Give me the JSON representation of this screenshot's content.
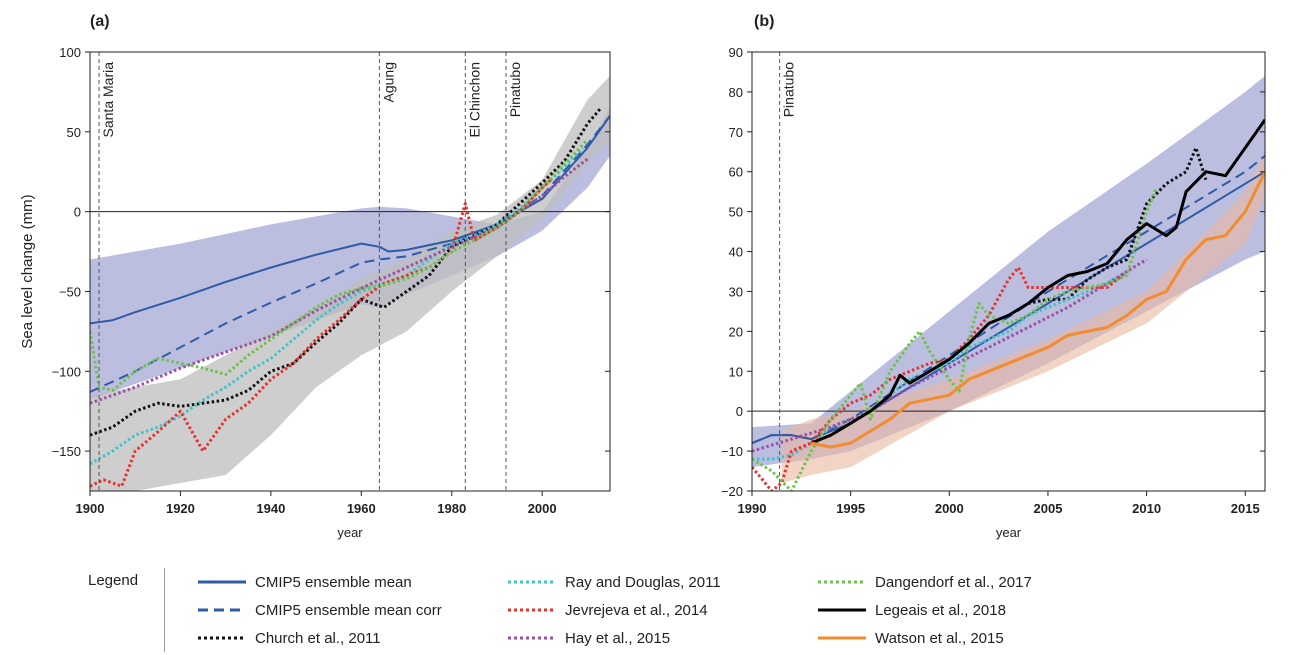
{
  "colors": {
    "cmip5": "#2f5aa8",
    "cmip5_band": "#8f92cc",
    "church": "#111111",
    "church_band": "#bdbdbd",
    "ray": "#40c4cc",
    "jevrejeva": "#e8302c",
    "hay": "#9b4fa6",
    "dangendorf": "#6cc24a",
    "legeais": "#000000",
    "watson": "#f28c30",
    "watson_band": "#e9b79f"
  },
  "legend": {
    "title": "Legend",
    "items": [
      {
        "label": "CMIP5 ensemble mean",
        "style": "solid",
        "color": "#2f5aa8"
      },
      {
        "label": "CMIP5 ensemble mean corr",
        "style": "dashed",
        "color": "#2f5aa8"
      },
      {
        "label": "Church et al., 2011",
        "style": "dotted",
        "color": "#111111"
      },
      {
        "label": "Ray and Douglas, 2011",
        "style": "dotted",
        "color": "#40c4cc"
      },
      {
        "label": "Jevrejeva et al., 2014",
        "style": "dotted",
        "color": "#e8302c"
      },
      {
        "label": "Hay et al., 2015",
        "style": "dotted",
        "color": "#9b4fa6"
      },
      {
        "label": "Dangendorf et al., 2017",
        "style": "dotted",
        "color": "#6cc24a"
      },
      {
        "label": "Legeais et al., 2018",
        "style": "solid",
        "color": "#000000"
      },
      {
        "label": "Watson et al., 2015",
        "style": "solid",
        "color": "#f28c30"
      }
    ]
  },
  "chart_data": [
    {
      "type": "line",
      "panel_label": "(a)",
      "title": "",
      "xlabel": "year",
      "ylabel": "Sea level change (mm)",
      "xlim": [
        1900,
        2015
      ],
      "ylim": [
        -175,
        100
      ],
      "xticks": [
        1900,
        1920,
        1940,
        1960,
        1980,
        2000
      ],
      "yticks": [
        -150,
        -100,
        -50,
        0,
        50,
        100
      ],
      "ytick_labels": [
        "−150",
        "−100",
        "−50",
        "0",
        "50",
        "100"
      ],
      "grid": false,
      "events": [
        {
          "year": 1902,
          "label": "Santa Maria"
        },
        {
          "year": 1964,
          "label": "Agung"
        },
        {
          "year": 1983,
          "label": "El Chinchon"
        },
        {
          "year": 1992,
          "label": "Pinatubo"
        }
      ],
      "bands": [
        {
          "key": "cmip5_band",
          "x": [
            1900,
            1910,
            1920,
            1930,
            1940,
            1950,
            1960,
            1964,
            1970,
            1980,
            1990,
            2000,
            2010,
            2015
          ],
          "upper": [
            -30,
            -25,
            -20,
            -14,
            -8,
            -3,
            2,
            3,
            2,
            -3,
            -8,
            0,
            40,
            65
          ],
          "lower": [
            -118,
            -108,
            -98,
            -88,
            -78,
            -68,
            -58,
            -60,
            -52,
            -40,
            -28,
            -12,
            15,
            35
          ]
        },
        {
          "key": "church_band",
          "x": [
            1900,
            1910,
            1920,
            1930,
            1940,
            1950,
            1960,
            1970,
            1980,
            1990,
            2000,
            2010,
            2015
          ],
          "upper": [
            -115,
            -110,
            -105,
            -90,
            -75,
            -60,
            -42,
            -30,
            -12,
            -2,
            20,
            70,
            85
          ],
          "lower": [
            -175,
            -175,
            -170,
            -165,
            -140,
            -110,
            -90,
            -75,
            -50,
            -28,
            -5,
            30,
            45
          ]
        }
      ],
      "series": [
        {
          "name": "CMIP5 ensemble mean",
          "key": "cmip5",
          "style": "solid",
          "x": [
            1900,
            1905,
            1910,
            1920,
            1930,
            1940,
            1950,
            1960,
            1964,
            1966,
            1970,
            1980,
            1990,
            2000,
            2010,
            2015
          ],
          "y": [
            -70,
            -68,
            -63,
            -54,
            -44,
            -35,
            -27,
            -20,
            -22,
            -25,
            -24,
            -18,
            -8,
            8,
            40,
            60
          ]
        },
        {
          "name": "CMIP5 ensemble mean corr",
          "key": "cmip5",
          "style": "dashed",
          "x": [
            1900,
            1910,
            1920,
            1930,
            1940,
            1950,
            1960,
            1964,
            1970,
            1980,
            1990,
            2000,
            2010,
            2015
          ],
          "y": [
            -113,
            -100,
            -85,
            -70,
            -57,
            -45,
            -32,
            -30,
            -28,
            -20,
            -8,
            10,
            42,
            60
          ]
        },
        {
          "name": "Church et al., 2011",
          "key": "church",
          "style": "dotted",
          "x": [
            1900,
            1905,
            1910,
            1915,
            1920,
            1925,
            1930,
            1935,
            1940,
            1945,
            1950,
            1955,
            1960,
            1965,
            1970,
            1975,
            1980,
            1985,
            1990,
            1995,
            2000,
            2005,
            2010,
            2013
          ],
          "y": [
            -140,
            -135,
            -125,
            -120,
            -122,
            -120,
            -118,
            -112,
            -100,
            -95,
            -82,
            -70,
            -55,
            -60,
            -50,
            -40,
            -22,
            -15,
            -8,
            5,
            18,
            32,
            55,
            65
          ]
        },
        {
          "name": "Ray and Douglas, 2011",
          "key": "ray",
          "style": "dotted",
          "x": [
            1900,
            1905,
            1910,
            1915,
            1920,
            1925,
            1930,
            1935,
            1940,
            1945,
            1950,
            1955,
            1960,
            1965,
            1970,
            1975,
            1980,
            1985,
            1990,
            1995,
            2000,
            2005,
            2009
          ],
          "y": [
            -158,
            -150,
            -140,
            -135,
            -128,
            -118,
            -110,
            -100,
            -92,
            -80,
            -68,
            -58,
            -50,
            -45,
            -40,
            -30,
            -20,
            -15,
            -8,
            2,
            15,
            28,
            40
          ]
        },
        {
          "name": "Jevrejeva et al., 2014",
          "key": "jevrejeva",
          "style": "dotted",
          "x": [
            1900,
            1903,
            1907,
            1910,
            1915,
            1920,
            1925,
            1930,
            1935,
            1940,
            1945,
            1950,
            1955,
            1960,
            1965,
            1970,
            1975,
            1980,
            1983,
            1985,
            1990,
            1995,
            2000,
            2002
          ],
          "y": [
            -172,
            -168,
            -172,
            -150,
            -138,
            -125,
            -150,
            -130,
            -120,
            -105,
            -95,
            -80,
            -68,
            -55,
            -45,
            -40,
            -35,
            -25,
            5,
            -18,
            -10,
            0,
            15,
            20
          ]
        },
        {
          "name": "Hay et al., 2015",
          "key": "hay",
          "style": "dotted",
          "x": [
            1900,
            1910,
            1920,
            1930,
            1940,
            1950,
            1960,
            1970,
            1980,
            1990,
            2000,
            2005,
            2010
          ],
          "y": [
            -120,
            -110,
            -98,
            -88,
            -78,
            -62,
            -48,
            -35,
            -22,
            -10,
            10,
            22,
            33
          ]
        },
        {
          "name": "Dangendorf et al., 2017",
          "key": "dangendorf",
          "style": "dotted",
          "x": [
            1900,
            1902,
            1905,
            1910,
            1915,
            1920,
            1925,
            1930,
            1935,
            1940,
            1945,
            1950,
            1955,
            1960,
            1965,
            1970,
            1975,
            1980,
            1985,
            1990,
            1995,
            2000,
            2005,
            2010
          ],
          "y": [
            -75,
            -110,
            -112,
            -100,
            -92,
            -95,
            -98,
            -102,
            -90,
            -80,
            -70,
            -60,
            -52,
            -48,
            -46,
            -42,
            -35,
            -25,
            -18,
            -10,
            0,
            15,
            30,
            45
          ]
        }
      ]
    },
    {
      "type": "line",
      "panel_label": "(b)",
      "title": "",
      "xlabel": "year",
      "ylabel": "",
      "xlim": [
        1990,
        2016
      ],
      "ylim": [
        -20,
        90
      ],
      "xticks": [
        1990,
        1995,
        2000,
        2005,
        2010,
        2015
      ],
      "yticks": [
        -20,
        -10,
        0,
        10,
        20,
        30,
        40,
        50,
        60,
        70,
        80,
        90
      ],
      "ytick_labels": [
        "−20",
        "−10",
        "0",
        "10",
        "20",
        "30",
        "40",
        "50",
        "60",
        "70",
        "80",
        "90"
      ],
      "grid": false,
      "events": [
        {
          "year": 1991.4,
          "label": "Pinatubo"
        }
      ],
      "bands": [
        {
          "key": "cmip5_band",
          "x": [
            1990,
            1993,
            1995,
            2000,
            2005,
            2010,
            2015,
            2016
          ],
          "upper": [
            -4,
            -3,
            5,
            25,
            45,
            62,
            80,
            84
          ],
          "lower": [
            -14,
            -12,
            -10,
            0,
            12,
            25,
            38,
            40
          ]
        },
        {
          "key": "watson_band",
          "x": [
            1991.5,
            1993,
            1995,
            2000,
            2005,
            2010,
            2015,
            2016
          ],
          "upper": [
            -5,
            -2,
            0,
            8,
            18,
            30,
            55,
            65
          ],
          "lower": [
            -18,
            -16,
            -14,
            0,
            10,
            22,
            42,
            54
          ]
        }
      ],
      "series": [
        {
          "name": "CMIP5 ensemble mean",
          "key": "cmip5",
          "style": "solid",
          "x": [
            1990,
            1991,
            1992,
            1993,
            1995,
            2000,
            2005,
            2010,
            2015,
            2016
          ],
          "y": [
            -8,
            -6,
            -6,
            -7,
            -3,
            12,
            27,
            42,
            57,
            60
          ]
        },
        {
          "name": "CMIP5 ensemble mean corr",
          "key": "cmip5",
          "style": "dashed",
          "x": [
            1990,
            1991,
            1992,
            1993,
            1995,
            2000,
            2005,
            2010,
            2015,
            2016
          ],
          "y": [
            -8,
            -6,
            -6,
            -7,
            -2,
            14,
            30,
            45,
            60,
            64
          ]
        },
        {
          "name": "Church et al., 2011",
          "key": "church",
          "style": "dotted",
          "x": [
            2004,
            2005,
            2006,
            2007,
            2008,
            2009,
            2010,
            2011,
            2012,
            2012.5,
            2013
          ],
          "y": [
            27,
            28,
            28,
            33,
            36,
            38,
            52,
            57,
            60,
            66,
            58
          ]
        },
        {
          "name": "Ray and Douglas, 2011",
          "key": "ray",
          "style": "dotted",
          "x": [
            1990,
            1991,
            1992,
            1993,
            1994,
            1995,
            1996,
            1997,
            1998,
            1999,
            2000,
            2001,
            2002,
            2003,
            2004,
            2005,
            2006,
            2007,
            2008,
            2009
          ],
          "y": [
            -12,
            -12,
            -11,
            -8,
            -4,
            -2,
            0,
            4,
            8,
            10,
            12,
            16,
            18,
            20,
            24,
            26,
            28,
            30,
            32,
            35
          ]
        },
        {
          "name": "Jevrejeva et al., 2014",
          "key": "jevrejeva",
          "style": "dotted",
          "x": [
            1990,
            1990.5,
            1991,
            1991.5,
            1992,
            1993,
            1994,
            1995,
            1996,
            1997,
            1998,
            1999,
            2000,
            2001,
            2002,
            2003,
            2003.5,
            2004,
            2006,
            2008,
            2009
          ],
          "y": [
            -14,
            -17,
            -20,
            -18,
            -10,
            -8,
            -2,
            2,
            4,
            8,
            10,
            12,
            13,
            18,
            24,
            33,
            36,
            31,
            31,
            31,
            35
          ]
        },
        {
          "name": "Hay et al., 2015",
          "key": "hay",
          "style": "dotted",
          "x": [
            1990,
            1992,
            1994,
            1996,
            1998,
            2000,
            2002,
            2004,
            2006,
            2008,
            2010
          ],
          "y": [
            -10,
            -7,
            -4,
            0,
            6,
            11,
            16,
            21,
            26,
            32,
            38
          ]
        },
        {
          "name": "Dangendorf et al., 2017",
          "key": "dangendorf",
          "style": "dotted",
          "x": [
            1990,
            1991,
            1992,
            1993,
            1994,
            1995,
            1995.5,
            1996,
            1997,
            1998,
            1998.5,
            1999,
            2000,
            2000.5,
            2001,
            2001.5,
            2002,
            2003,
            2004,
            2005,
            2006,
            2007,
            2008,
            2009,
            2010,
            2010.5
          ],
          "y": [
            -12,
            -15,
            -20,
            -10,
            -2,
            4,
            7,
            -2,
            10,
            17,
            20,
            15,
            8,
            5,
            18,
            27,
            24,
            22,
            24,
            28,
            30,
            31,
            32,
            34,
            50,
            56
          ]
        },
        {
          "name": "Legeais et al., 2018",
          "key": "legeais",
          "style": "solid",
          "x": [
            1993,
            1994,
            1995,
            1996,
            1997,
            1997.5,
            1998,
            1999,
            2000,
            2001,
            2002,
            2003,
            2004,
            2005,
            2006,
            2007,
            2008,
            2009,
            2010,
            2011,
            2011.5,
            2012,
            2013,
            2014,
            2015,
            2016
          ],
          "y": [
            -8,
            -6,
            -3,
            0,
            4,
            9,
            7,
            10,
            13,
            17,
            22,
            24,
            27,
            31,
            34,
            35,
            37,
            43,
            47,
            44,
            46,
            55,
            60,
            59,
            66,
            73
          ]
        },
        {
          "name": "Watson et al., 2015",
          "key": "watson",
          "style": "solid",
          "x": [
            1993,
            1994,
            1995,
            1996,
            1997,
            1998,
            1999,
            2000,
            2001,
            2002,
            2003,
            2004,
            2005,
            2006,
            2007,
            2008,
            2009,
            2010,
            2011,
            2012,
            2013,
            2014,
            2015,
            2016
          ],
          "y": [
            -8,
            -9,
            -8,
            -5,
            -2,
            2,
            3,
            4,
            8,
            10,
            12,
            14,
            16,
            19,
            20,
            21,
            24,
            28,
            30,
            38,
            43,
            44,
            50,
            60
          ]
        }
      ]
    }
  ]
}
